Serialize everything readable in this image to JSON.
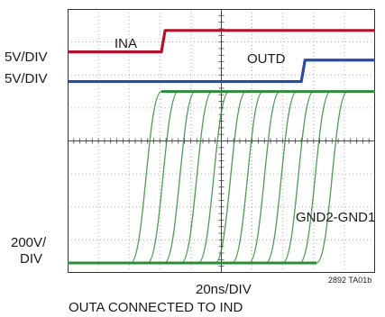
{
  "chart_data": {
    "type": "line",
    "title": "",
    "grid": true,
    "divisions": {
      "x": 10,
      "y": 8
    },
    "xlabel": "20ns/DIV",
    "scale_labels": {
      "ina": "5V/DIV",
      "outd": "5V/DIV",
      "gnd": "200V/ DIV"
    },
    "figure_id": "2892 TA01b",
    "caption": "OUTA CONNECTED TO IND",
    "series": [
      {
        "name": "INA",
        "color": "#b3122e",
        "low_div": 6.7,
        "high_div": 7.35,
        "edge_div": 3.05
      },
      {
        "name": "OUTD",
        "color": "#2a4aa8",
        "low_div": 5.8,
        "high_div": 6.45,
        "edge_div": 7.6
      },
      {
        "name": "GND2-GND1",
        "color": "#2e8b3a",
        "low_div": 0.3,
        "high_div": 5.5,
        "edge_starts_div": [
          2.05,
          2.6,
          3.15,
          3.7,
          4.25,
          4.8,
          5.35,
          5.9,
          6.45,
          7.0,
          7.55,
          8.1
        ],
        "rise_div": 1.0
      }
    ]
  }
}
